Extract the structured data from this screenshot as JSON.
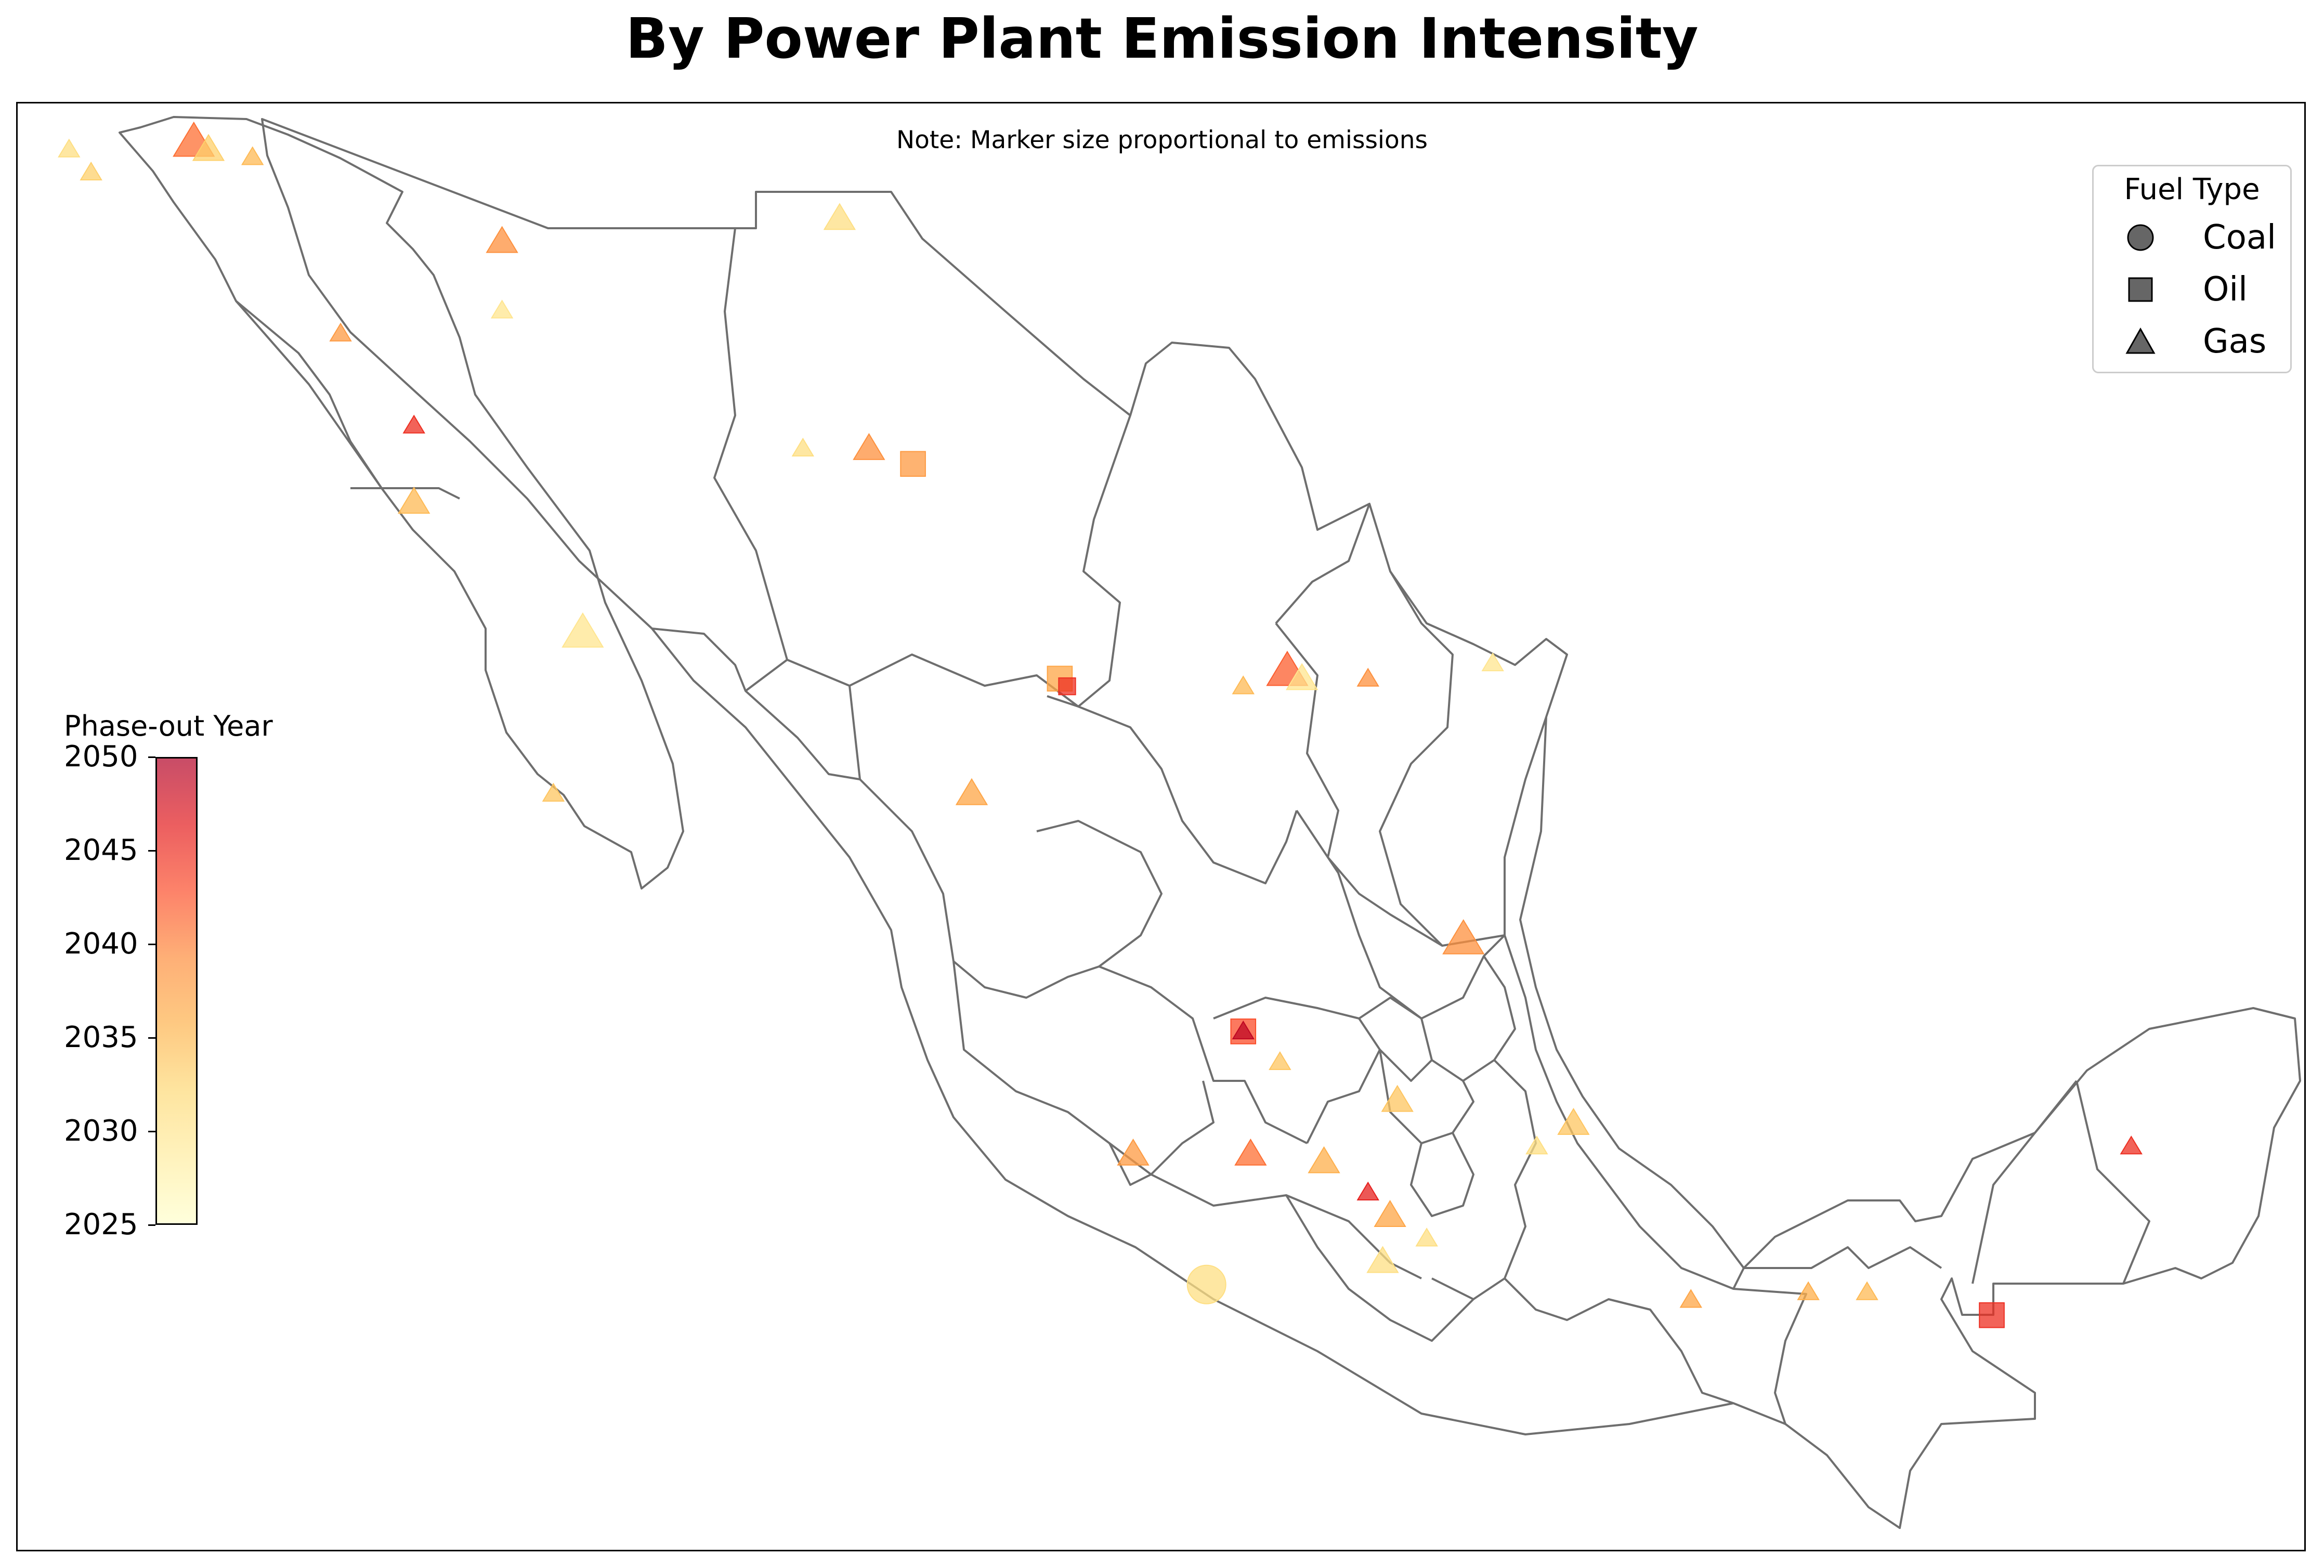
{
  "title": "By Power Plant Emission Intensity",
  "note": "Note: Marker size proportional to emissions",
  "legend": {
    "title": "Fuel Type",
    "items": [
      {
        "label": "Coal",
        "marker": "circle"
      },
      {
        "label": "Oil",
        "marker": "square"
      },
      {
        "label": "Gas",
        "marker": "triangle"
      }
    ]
  },
  "colorbar": {
    "title": "Phase-out Year",
    "ticks": [
      "2050",
      "2045",
      "2040",
      "2035",
      "2030",
      "2025"
    ],
    "range": [
      2025,
      2050
    ],
    "colors": [
      "#ffffcc",
      "#ffeda0",
      "#fed976",
      "#feb24c",
      "#fd8d3c",
      "#fc4e2a",
      "#e31a1c",
      "#b10026"
    ]
  },
  "map": {
    "region": "Mexico",
    "boundaries": "state borders",
    "outline_color": "#6e6e6e"
  },
  "chart_data": {
    "type": "scatter",
    "title": "By Power Plant Emission Intensity",
    "x_axis": "longitude",
    "y_axis": "latitude",
    "color_variable": "Phase-out Year",
    "size_variable": "emissions",
    "plants": [
      {
        "fuel": "gas",
        "lon": -115.2,
        "lat": 32.6,
        "year": 2041,
        "size": 3
      },
      {
        "fuel": "gas",
        "lon": -115.0,
        "lat": 32.5,
        "year": 2033,
        "size": 2
      },
      {
        "fuel": "gas",
        "lon": -116.9,
        "lat": 32.5,
        "year": 2031,
        "size": 1
      },
      {
        "fuel": "gas",
        "lon": -116.6,
        "lat": 32.2,
        "year": 2033,
        "size": 1
      },
      {
        "fuel": "gas",
        "lon": -114.4,
        "lat": 32.4,
        "year": 2035,
        "size": 1
      },
      {
        "fuel": "gas",
        "lon": -111.0,
        "lat": 31.3,
        "year": 2039,
        "size": 2
      },
      {
        "fuel": "gas",
        "lon": -111.0,
        "lat": 30.4,
        "year": 2030,
        "size": 1
      },
      {
        "fuel": "gas",
        "lon": -106.4,
        "lat": 31.6,
        "year": 2031,
        "size": 2
      },
      {
        "fuel": "gas",
        "lon": -113.2,
        "lat": 30.1,
        "year": 2038,
        "size": 1
      },
      {
        "fuel": "gas",
        "lon": -112.2,
        "lat": 28.9,
        "year": 2045,
        "size": 1
      },
      {
        "fuel": "gas",
        "lon": -112.2,
        "lat": 27.9,
        "year": 2035,
        "size": 2
      },
      {
        "fuel": "gas",
        "lon": -106.9,
        "lat": 28.6,
        "year": 2031,
        "size": 1
      },
      {
        "fuel": "gas",
        "lon": -106.0,
        "lat": 28.6,
        "year": 2039,
        "size": 2
      },
      {
        "fuel": "oil",
        "lon": -105.4,
        "lat": 28.4,
        "year": 2038,
        "size": 2
      },
      {
        "fuel": "gas",
        "lon": -109.9,
        "lat": 26.2,
        "year": 2030,
        "size": 3
      },
      {
        "fuel": "oil",
        "lon": -103.4,
        "lat": 25.6,
        "year": 2037,
        "size": 2
      },
      {
        "fuel": "oil",
        "lon": -103.3,
        "lat": 25.5,
        "year": 2045,
        "size": 1
      },
      {
        "fuel": "gas",
        "lon": -100.3,
        "lat": 25.7,
        "year": 2042,
        "size": 3
      },
      {
        "fuel": "gas",
        "lon": -100.1,
        "lat": 25.6,
        "year": 2030,
        "size": 2
      },
      {
        "fuel": "gas",
        "lon": -100.9,
        "lat": 25.5,
        "year": 2035,
        "size": 1
      },
      {
        "fuel": "gas",
        "lon": -99.2,
        "lat": 25.6,
        "year": 2039,
        "size": 1
      },
      {
        "fuel": "gas",
        "lon": -97.5,
        "lat": 25.8,
        "year": 2030,
        "size": 1
      },
      {
        "fuel": "gas",
        "lon": -104.6,
        "lat": 24.1,
        "year": 2037,
        "size": 2
      },
      {
        "fuel": "gas",
        "lon": -110.3,
        "lat": 24.1,
        "year": 2034,
        "size": 1
      },
      {
        "fuel": "gas",
        "lon": -97.9,
        "lat": 22.2,
        "year": 2039,
        "size": 3
      },
      {
        "fuel": "oil",
        "lon": -100.9,
        "lat": 21.0,
        "year": 2043,
        "size": 2
      },
      {
        "fuel": "gas",
        "lon": -100.9,
        "lat": 21.0,
        "year": 2049,
        "size": 1
      },
      {
        "fuel": "gas",
        "lon": -100.4,
        "lat": 20.6,
        "year": 2034,
        "size": 1
      },
      {
        "fuel": "gas",
        "lon": -98.8,
        "lat": 20.1,
        "year": 2034,
        "size": 2
      },
      {
        "fuel": "gas",
        "lon": -96.4,
        "lat": 19.8,
        "year": 2034,
        "size": 2
      },
      {
        "fuel": "gas",
        "lon": -96.9,
        "lat": 19.5,
        "year": 2031,
        "size": 1
      },
      {
        "fuel": "gas",
        "lon": -102.4,
        "lat": 19.4,
        "year": 2038,
        "size": 2
      },
      {
        "fuel": "gas",
        "lon": -100.8,
        "lat": 19.4,
        "year": 2041,
        "size": 2
      },
      {
        "fuel": "gas",
        "lon": -99.8,
        "lat": 19.3,
        "year": 2036,
        "size": 2
      },
      {
        "fuel": "gas",
        "lon": -99.2,
        "lat": 18.9,
        "year": 2046,
        "size": 1
      },
      {
        "fuel": "gas",
        "lon": -98.9,
        "lat": 18.6,
        "year": 2037,
        "size": 2
      },
      {
        "fuel": "gas",
        "lon": -98.4,
        "lat": 18.3,
        "year": 2031,
        "size": 1
      },
      {
        "fuel": "gas",
        "lon": -99.0,
        "lat": 18.0,
        "year": 2031,
        "size": 2
      },
      {
        "fuel": "gas",
        "lon": -94.8,
        "lat": 17.5,
        "year": 2037,
        "size": 1
      },
      {
        "fuel": "coal",
        "lon": -101.4,
        "lat": 17.7,
        "year": 2031,
        "size": 3
      },
      {
        "fuel": "gas",
        "lon": -93.2,
        "lat": 17.6,
        "year": 2036,
        "size": 1
      },
      {
        "fuel": "gas",
        "lon": -92.4,
        "lat": 17.6,
        "year": 2035,
        "size": 1
      },
      {
        "fuel": "oil",
        "lon": -90.7,
        "lat": 17.3,
        "year": 2045,
        "size": 2
      },
      {
        "fuel": "gas",
        "lon": -88.8,
        "lat": 19.5,
        "year": 2045,
        "size": 1
      }
    ]
  }
}
